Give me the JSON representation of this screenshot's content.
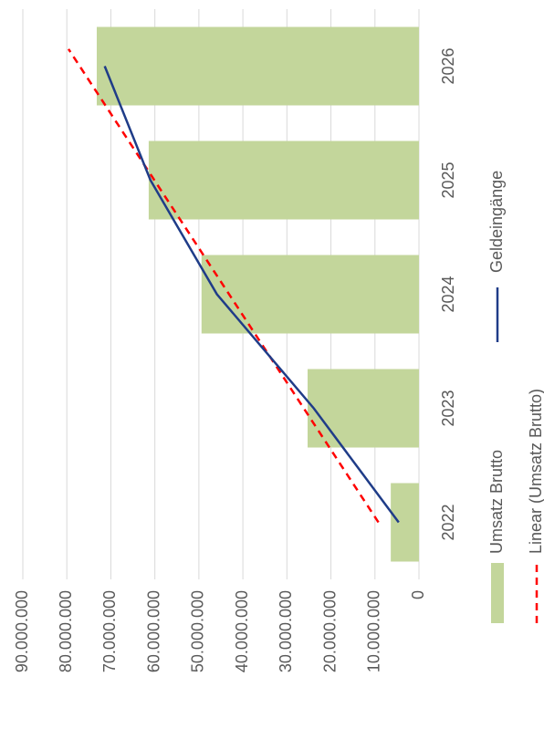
{
  "chart_data": {
    "type": "bar",
    "categories": [
      "2022",
      "2023",
      "2024",
      "2025",
      "2026"
    ],
    "series": [
      {
        "name": "Umsatz Brutto",
        "type": "bar",
        "color": "#c3d69b",
        "values": [
          6400000,
          25300000,
          49400000,
          61400000,
          73200000
        ]
      },
      {
        "name": "Geldeingänge",
        "type": "line",
        "color": "#1f3c88",
        "values": [
          4600000,
          23900000,
          45900000,
          61000000,
          71400000
        ]
      }
    ],
    "trendline": {
      "name": "Linear (Umsatz Brutto)",
      "color": "#ff0000"
    },
    "ylim": [
      0,
      90000000
    ],
    "yticks": [
      0,
      {
        "value": 10000000,
        "label": "10.000.000"
      },
      {
        "value": 20000000,
        "label": "20.000.000"
      },
      {
        "value": 30000000,
        "label": "30.000.000"
      },
      {
        "value": 40000000,
        "label": "40.000.000"
      },
      {
        "value": 50000000,
        "label": "50.000.000"
      },
      {
        "value": 60000000,
        "label": "60.000.000"
      },
      {
        "value": 70000000,
        "label": "70.000.000"
      },
      {
        "value": 80000000,
        "label": "80.000.000"
      },
      {
        "value": 90000000,
        "label": "90.000.000"
      }
    ],
    "grid": true
  }
}
